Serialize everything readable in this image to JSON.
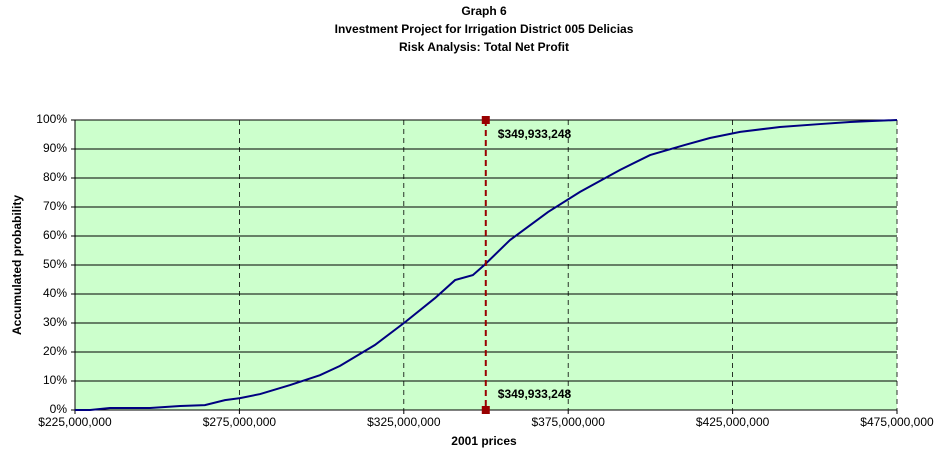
{
  "chart_data": {
    "type": "line",
    "title_lines": [
      "Graph 6",
      "Investment Project for Irrigation District 005 Delicias",
      "Risk Analysis: Total Net Profit"
    ],
    "x_label": "2001 prices",
    "y_label": "Accumulated probability",
    "x": [
      225000000,
      229600000,
      235600000,
      247800000,
      257000000,
      264500000,
      270600000,
      275200000,
      281300000,
      290400000,
      299500000,
      305600000,
      316200000,
      325400000,
      334500000,
      340600000,
      346000000,
      349500000,
      357300000,
      368900000,
      378600000,
      390800000,
      399900000,
      410500000,
      418100000,
      427300000,
      439400000,
      451600000,
      460700000,
      468300000,
      475000000
    ],
    "series": [
      {
        "name": "Total Net Profit",
        "color": "#000080",
        "values": [
          0,
          0,
          0.7,
          0.7,
          1.4,
          1.7,
          3.4,
          4.1,
          5.5,
          8.6,
          12,
          15.2,
          22.4,
          30.3,
          38.6,
          44.8,
          46.5,
          50,
          58.6,
          68.3,
          75.2,
          82.8,
          87.9,
          91.4,
          93.8,
          95.9,
          97.6,
          98.6,
          99.3,
          99.7,
          100
        ]
      }
    ],
    "markers": [
      {
        "x": 349933248,
        "y": 100,
        "label": "$349,933,248"
      },
      {
        "x": 349933248,
        "y": 0,
        "label": "$349,933,248"
      }
    ],
    "marker_color": "#990000",
    "plot_background": "#ccffcc",
    "xlim": [
      225000000,
      475000000
    ],
    "xticks": [
      {
        "value": 225000000,
        "label": "$225,000,000"
      },
      {
        "value": 275000000,
        "label": "$275,000,000"
      },
      {
        "value": 325000000,
        "label": "$325,000,000"
      },
      {
        "value": 375000000,
        "label": "$375,000,000"
      },
      {
        "value": 425000000,
        "label": "$425,000,000"
      },
      {
        "value": 475000000,
        "label": "$475,000,000"
      }
    ],
    "ylim": [
      0,
      100
    ],
    "yticks": [
      {
        "value": 0,
        "label": "0%"
      },
      {
        "value": 10,
        "label": "10%"
      },
      {
        "value": 20,
        "label": "20%"
      },
      {
        "value": 30,
        "label": "30%"
      },
      {
        "value": 40,
        "label": "40%"
      },
      {
        "value": 50,
        "label": "50%"
      },
      {
        "value": 60,
        "label": "60%"
      },
      {
        "value": 70,
        "label": "70%"
      },
      {
        "value": 80,
        "label": "80%"
      },
      {
        "value": 90,
        "label": "90%"
      },
      {
        "value": 100,
        "label": "100%"
      }
    ],
    "grid": true
  }
}
